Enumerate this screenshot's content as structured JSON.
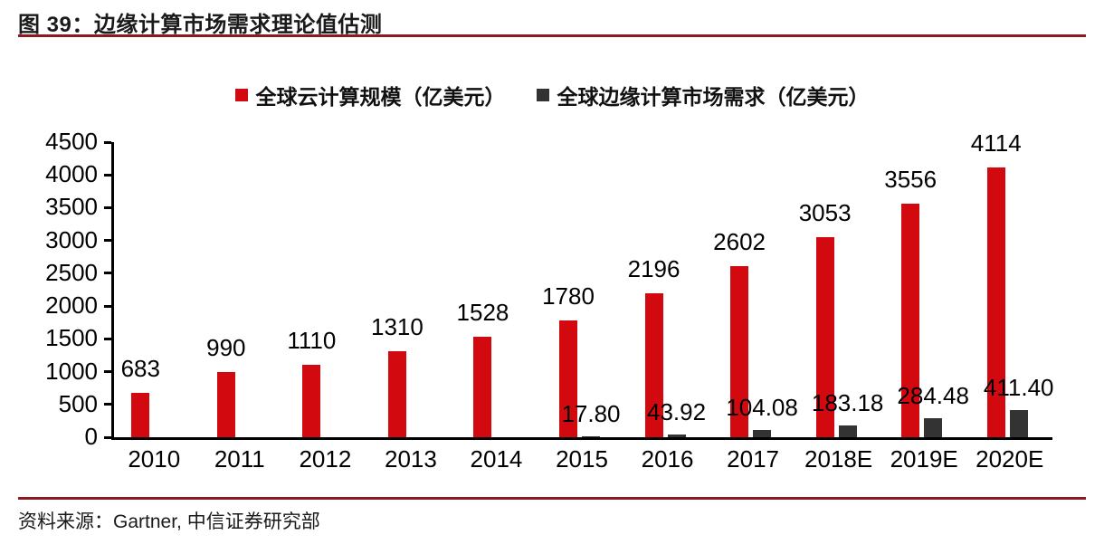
{
  "header": {
    "title": "图 39：边缘计算市场需求理论值估测",
    "rule_color": "#8C1A20"
  },
  "chart_data": {
    "type": "bar",
    "categories": [
      "2010",
      "2011",
      "2012",
      "2013",
      "2014",
      "2015",
      "2016",
      "2017",
      "2018E",
      "2019E",
      "2020E"
    ],
    "series": [
      {
        "name": "全球云计算规模（亿美元）",
        "color": "#D20A10",
        "values": [
          683,
          990,
          1110,
          1310,
          1528,
          1780,
          2196,
          2602,
          3053,
          3556,
          4114
        ],
        "labels": [
          "683",
          "990",
          "1110",
          "1310",
          "1528",
          "1780",
          "2196",
          "2602",
          "3053",
          "3556",
          "4114"
        ]
      },
      {
        "name": "全球边缘计算市场需求（亿美元）",
        "color": "#333333",
        "values": [
          null,
          null,
          null,
          null,
          null,
          17.8,
          43.92,
          104.08,
          183.18,
          284.48,
          411.4
        ],
        "labels": [
          null,
          null,
          null,
          null,
          null,
          "17.80",
          "43.92",
          "104.08",
          "183.18",
          "284.48",
          "411.40"
        ]
      }
    ],
    "title": "",
    "xlabel": "",
    "ylabel": "",
    "ylim": [
      0,
      4500
    ],
    "ytick_step": 500,
    "ytick_labels": [
      "0",
      "500",
      "1000",
      "1500",
      "2000",
      "2500",
      "3000",
      "3500",
      "4000",
      "4500"
    ],
    "grid": false,
    "legend_position": "top",
    "axis_color": "#000000",
    "label_color": "#000000"
  },
  "footer": {
    "source": "资料来源：Gartner, 中信证券研究部",
    "rule_color": "#8C1A20"
  }
}
